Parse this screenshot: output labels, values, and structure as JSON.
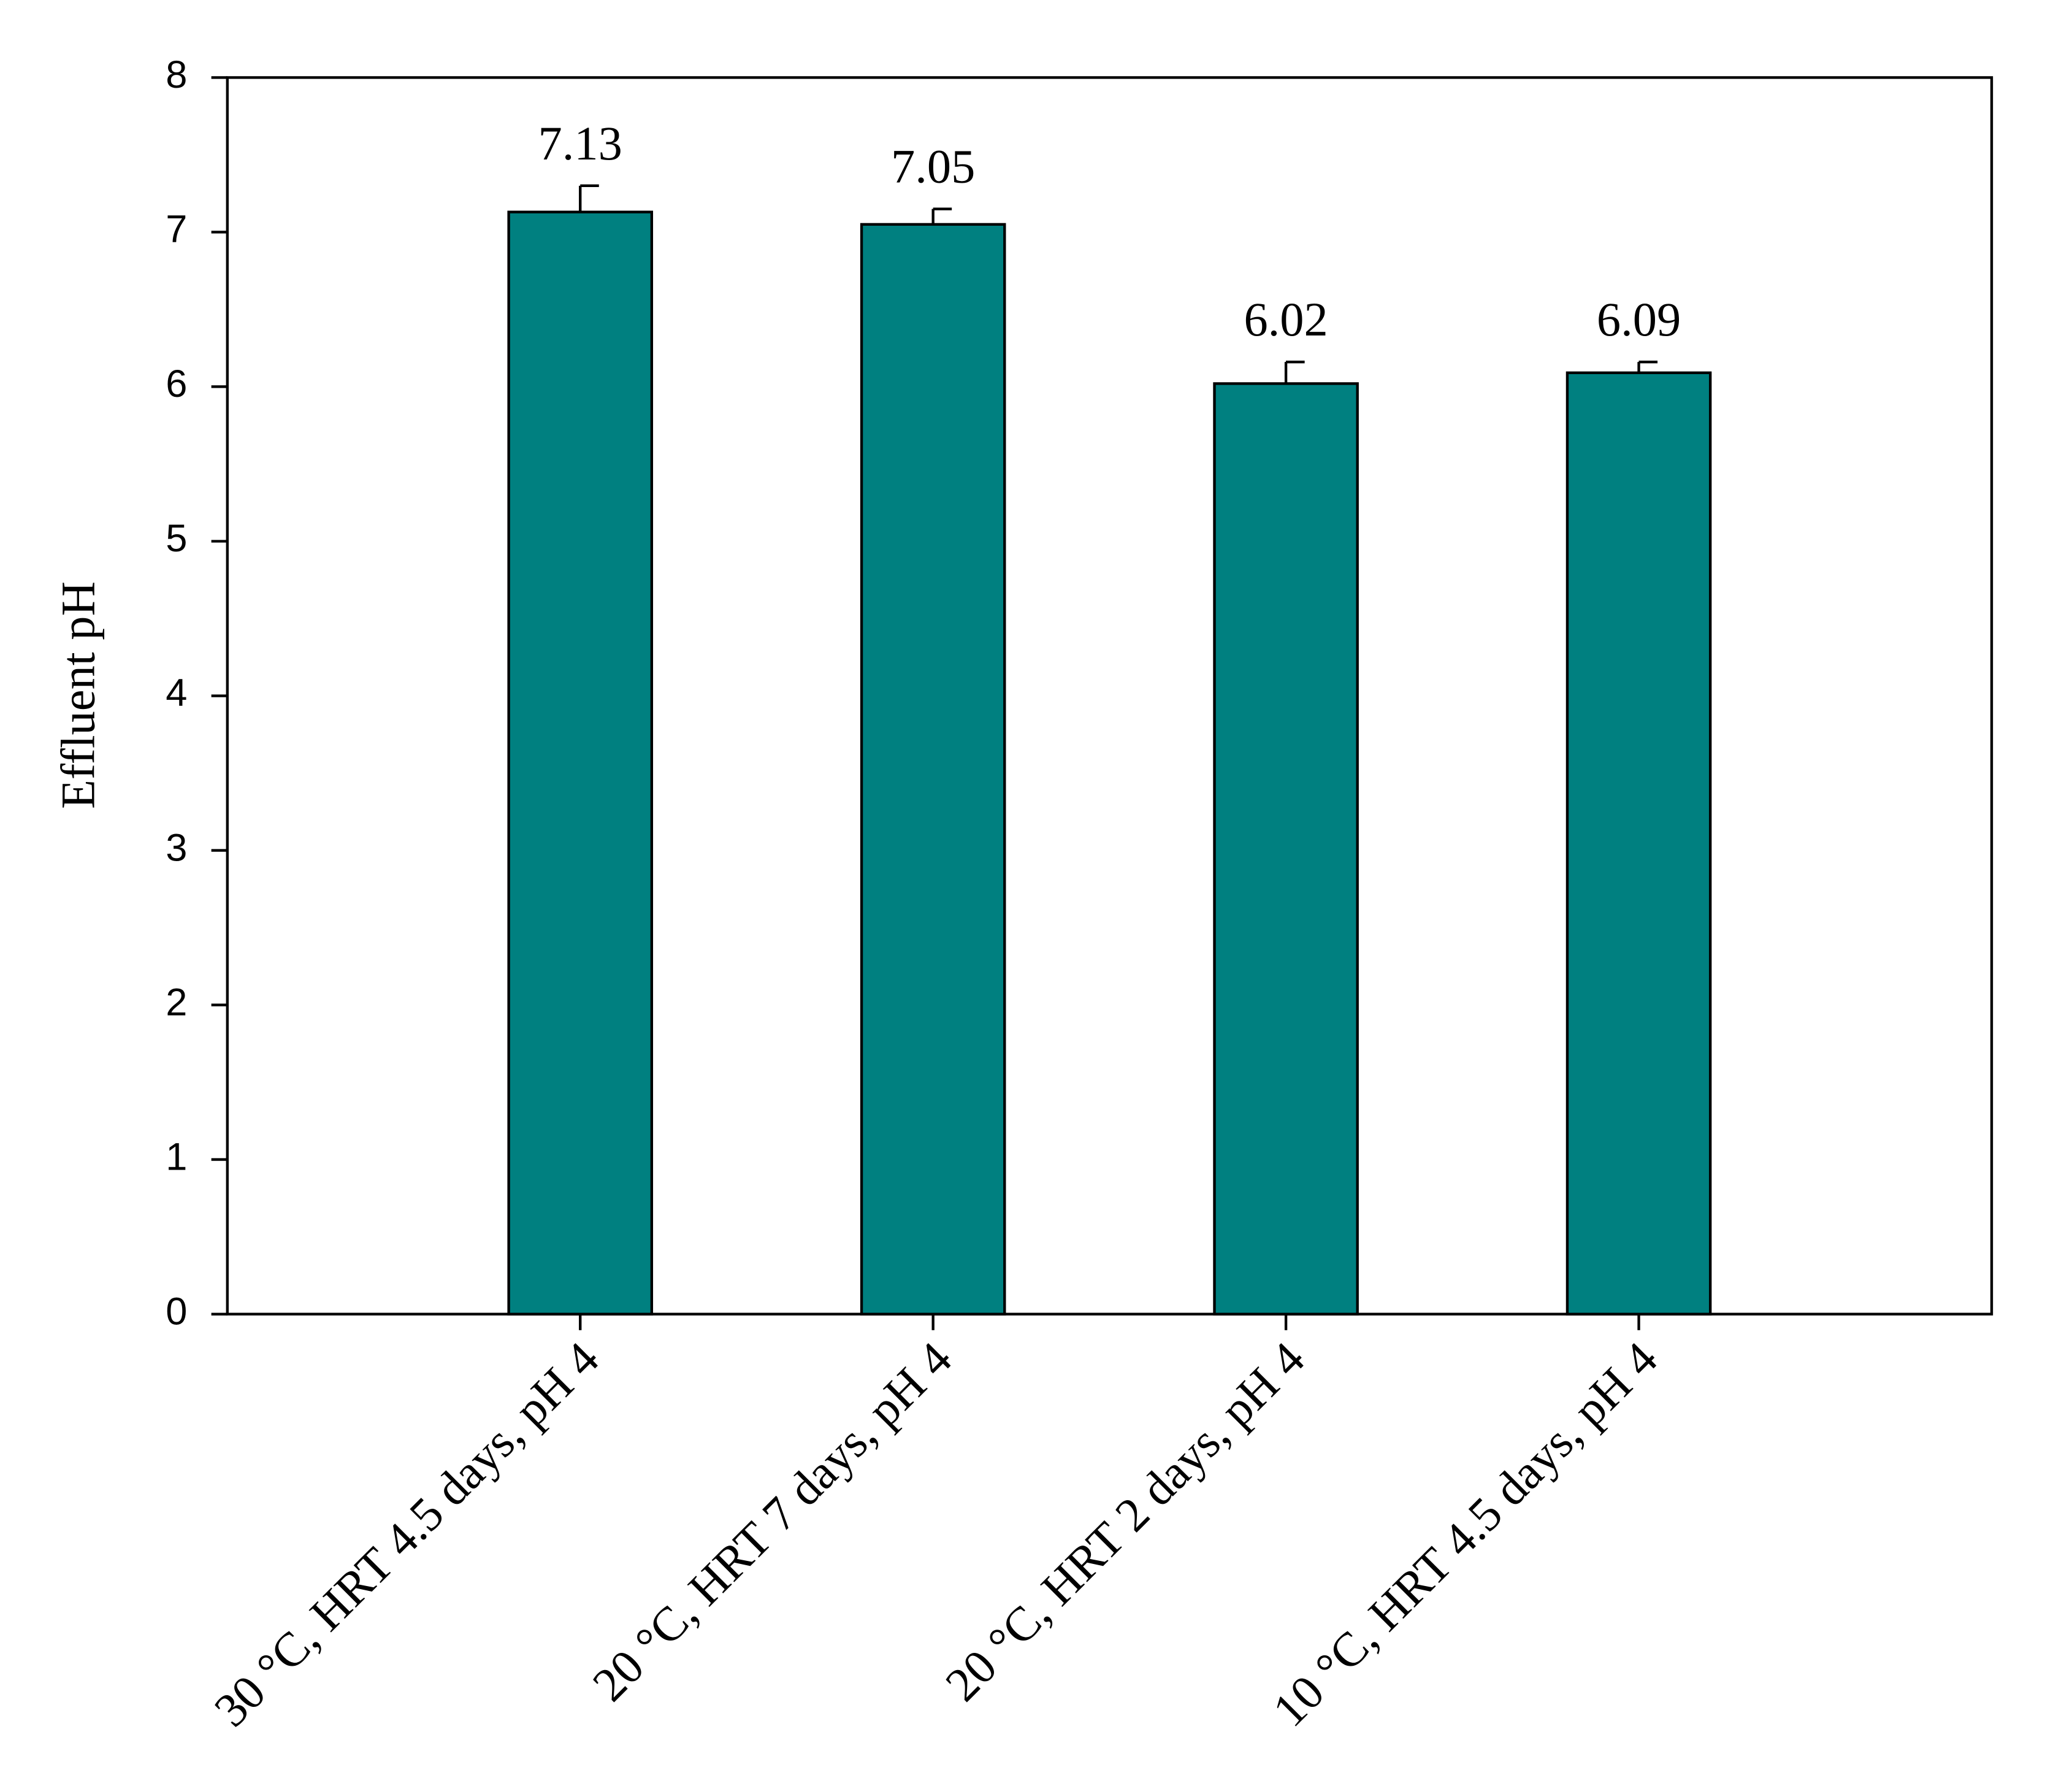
{
  "chart_data": {
    "type": "bar",
    "y_label": "Effluent pH",
    "categories": [
      "30 °C, HRT 4.5 days, pH 4",
      "20 °C, HRT 7 days, pH 4",
      "20 °C, HRT 2 days, pH 4",
      "10 °C, HRT 4.5 days, pH 4"
    ],
    "values": [
      7.13,
      7.05,
      6.02,
      6.09
    ],
    "errors": [
      0.17,
      0.1,
      0.14,
      0.07
    ],
    "color": "#008080",
    "ylim": [
      0,
      8
    ],
    "yticks": [
      0,
      1,
      2,
      3,
      4,
      5,
      6,
      7,
      8
    ],
    "grid": false
  }
}
